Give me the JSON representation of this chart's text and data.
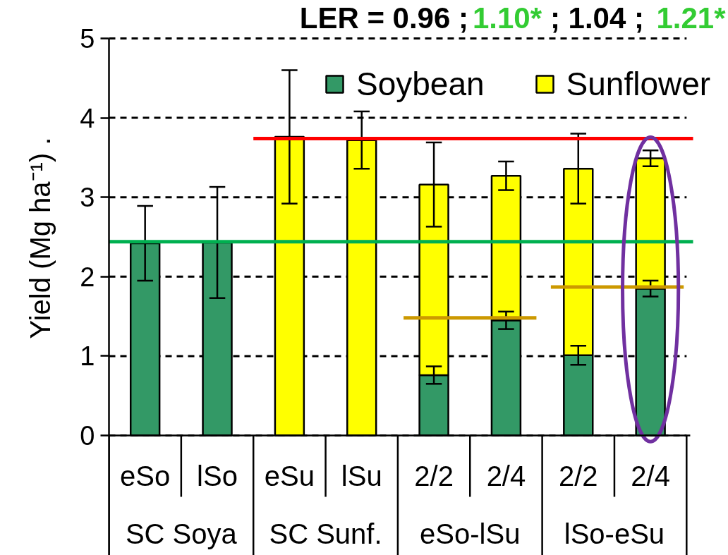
{
  "chart_data": {
    "type": "bar",
    "annotations": [
      "LER = 0.96 ;",
      "1.10*",
      "; 1.04 ;",
      "1.21*",
      "SC Soya",
      "SC Sunf.",
      "eSo-lSu",
      "lSo-eSu"
    ],
    "ylabel": "Yield (Mg ha⁻¹) .",
    "categories": [
      "eSo",
      "lSo",
      "eSu",
      "lSu",
      "2/2",
      "2/4",
      "2/2",
      "2/4"
    ],
    "stacked": true,
    "series": [
      {
        "name": "Soybean",
        "color": "#339966",
        "values": [
          2.42,
          2.43,
          null,
          null,
          0.76,
          1.45,
          1.01,
          1.85
        ],
        "errors": [
          0.47,
          0.7,
          null,
          null,
          0.11,
          0.11,
          0.12,
          0.1
        ]
      },
      {
        "name": "Sunflower",
        "color": "#ffff00",
        "values": [
          null,
          null,
          3.76,
          3.72,
          2.4,
          1.82,
          2.35,
          1.64
        ],
        "errors": [
          null,
          null,
          0.84,
          0.36,
          0.53,
          0.18,
          0.44,
          0.1
        ]
      }
    ],
    "ylim": [
      0,
      5
    ],
    "yticks": [
      0,
      1,
      2,
      3,
      4,
      5
    ],
    "grid": "y",
    "legend": "top right",
    "ref_lines": [
      {
        "axis": "y",
        "value": 3.74,
        "color": "#ff0000"
      },
      {
        "axis": "y",
        "value": 2.44,
        "color": "#00b050"
      },
      {
        "axis": "y",
        "value": 1.48,
        "color": "#cc9900"
      },
      {
        "axis": "y",
        "value": 1.87,
        "color": "#cc9900"
      }
    ]
  }
}
